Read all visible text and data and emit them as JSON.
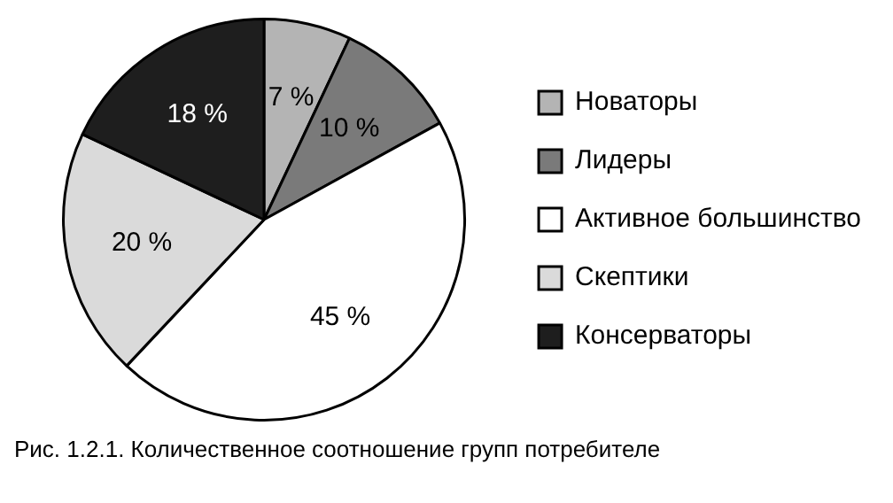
{
  "chart_data": {
    "type": "pie",
    "categories": [
      "Новаторы",
      "Лидеры",
      "Активное большинство",
      "Скептики",
      "Консерваторы"
    ],
    "values": [
      7,
      10,
      45,
      20,
      18
    ],
    "colors": [
      "#b4b4b4",
      "#7a7a7a",
      "#ffffff",
      "#dadada",
      "#1e1e1e"
    ],
    "value_labels": [
      "7 %",
      "10 %",
      "45 %",
      "20 %",
      "18 %"
    ],
    "legend": "right",
    "annotations": [
      "Рис. 1.2.1. Количественное соотношение групп потребителе"
    ]
  }
}
